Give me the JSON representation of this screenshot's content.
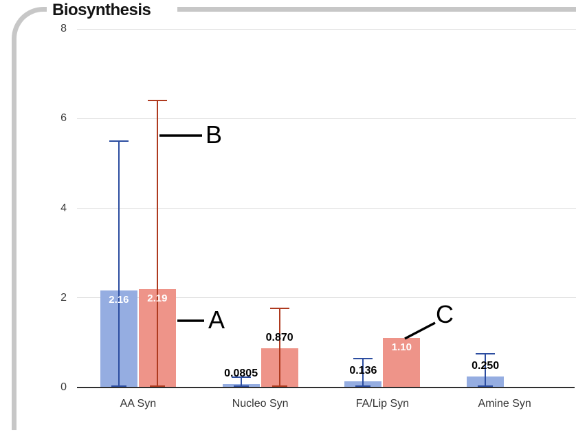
{
  "panel": {
    "title": "Biosynthesis"
  },
  "colors": {
    "bar_blue": "#95ade1",
    "bar_red": "#ee9489",
    "error_blue": "#2c4da0",
    "error_red": "#ae3a1f",
    "gridline": "#dcdcdc",
    "axis_line": "#2f2f2f",
    "axis_text": "#3c3c3c",
    "panel_border": "#c7c7c7",
    "annotation": "#000000"
  },
  "chart_data": {
    "type": "bar",
    "title": "Biosynthesis",
    "categories": [
      "AA Syn",
      "Nucleo Syn",
      "FA/Lip Syn",
      "Amine Syn"
    ],
    "series": [
      {
        "name": "series-blue",
        "color": "#95ade1",
        "error_color": "#2c4da0",
        "values": [
          2.16,
          0.0805,
          0.136,
          0.25
        ],
        "labels": [
          "2.16",
          "0.0805",
          "0.136",
          "0.250"
        ],
        "error_top": [
          5.5,
          0.23,
          0.64,
          0.75
        ]
      },
      {
        "name": "series-red",
        "color": "#ee9489",
        "error_color": "#ae3a1f",
        "values": [
          2.19,
          0.87,
          1.1,
          null
        ],
        "labels": [
          "2.19",
          "0.870",
          "1.10",
          null
        ],
        "error_top": [
          6.4,
          1.77,
          null,
          null
        ]
      }
    ],
    "ylim": [
      0,
      8
    ],
    "yticks": [
      0,
      2,
      4,
      6,
      8
    ],
    "grid": true,
    "legend": "none",
    "annotations": [
      {
        "label": "A",
        "line": [
          258,
          466,
          297,
          466
        ],
        "text": [
          303,
          466
        ]
      },
      {
        "label": "B",
        "line": [
          232,
          197,
          294,
          197
        ],
        "text": [
          299,
          197
        ]
      },
      {
        "label": "C",
        "line": [
          589,
          492,
          633,
          469
        ],
        "text": [
          634,
          458
        ]
      }
    ]
  }
}
